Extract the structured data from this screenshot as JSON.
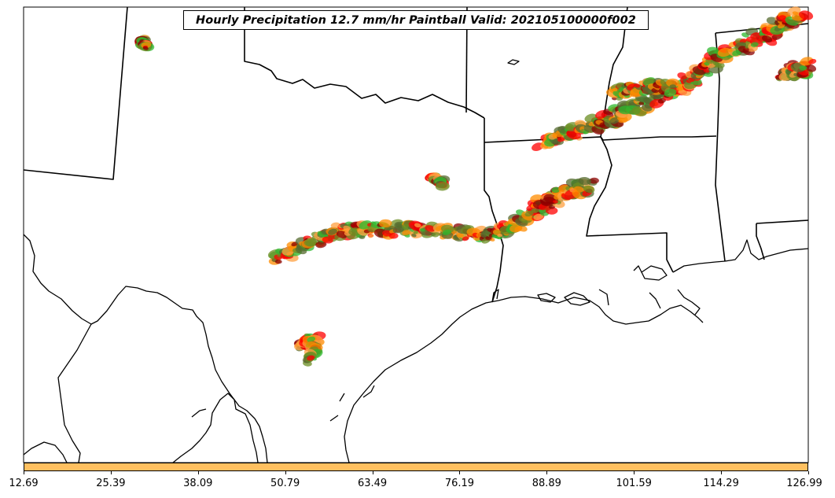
{
  "title": "Hourly Precipitation 12.7 mm/hr Paintball Valid: 202105100000f002",
  "colorbar": {
    "color": "#ffc060",
    "ticks": [
      "12.69",
      "25.39",
      "38.09",
      "50.79",
      "63.49",
      "76.19",
      "88.89",
      "101.59",
      "114.29",
      "126.99"
    ]
  },
  "paintball_colors": [
    "#ff8c00",
    "#ff0000",
    "#8b0000",
    "#556b2f",
    "#2eb82e",
    "#ffa040",
    "#6b8e23"
  ]
}
